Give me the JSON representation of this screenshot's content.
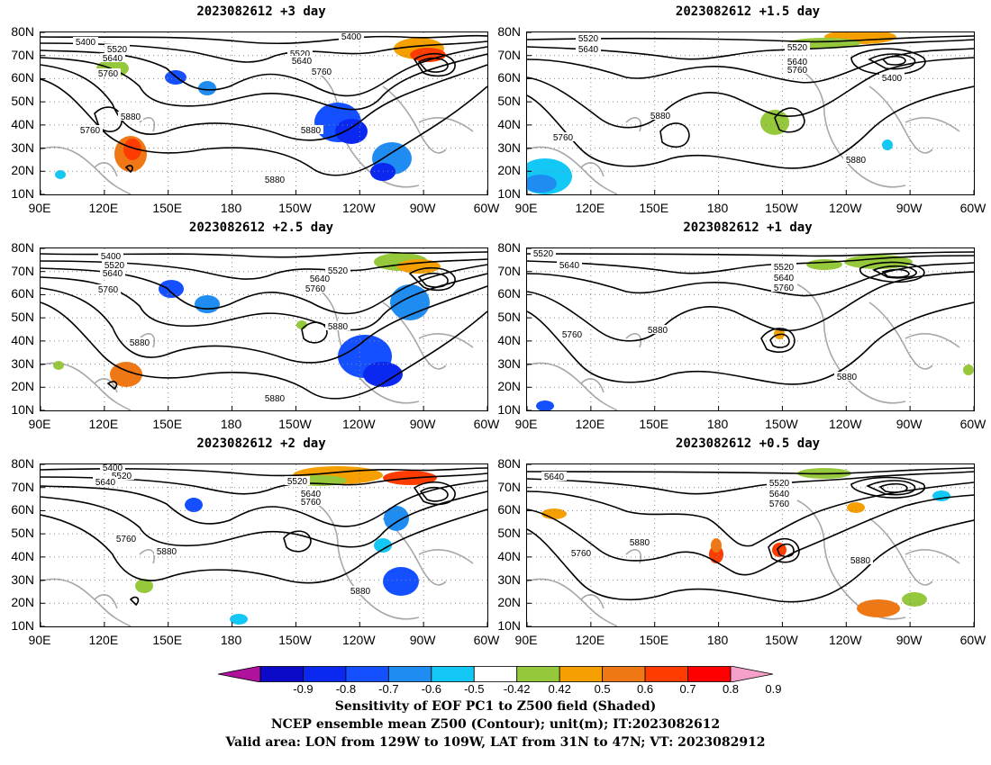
{
  "panels": [
    {
      "title": "2023082612 +3 day"
    },
    {
      "title": "2023082612 +1.5 day"
    },
    {
      "title": "2023082612 +2.5 day"
    },
    {
      "title": "2023082612 +1 day"
    },
    {
      "title": "2023082612 +2 day"
    },
    {
      "title": "2023082612 +0.5 day"
    }
  ],
  "axes": {
    "lat_labels": [
      "80N",
      "70N",
      "60N",
      "50N",
      "40N",
      "30N",
      "20N",
      "10N"
    ],
    "lon_labels": [
      "90E",
      "120E",
      "150E",
      "180",
      "150W",
      "120W",
      "90W",
      "60W"
    ]
  },
  "contour_labels": {
    "panel_0": [
      "5400",
      "5520",
      "5640",
      "5760",
      "5880",
      "5400",
      "5520",
      "5640",
      "5760",
      "5880",
      "5760",
      "5880"
    ],
    "panel_1": [
      "5520",
      "5640",
      "5520",
      "5640",
      "5760",
      "5400",
      "5880",
      "5760",
      "5880"
    ],
    "panel_2": [
      "5400",
      "5520",
      "5640",
      "5760",
      "5520",
      "5640",
      "5760",
      "5880",
      "5880",
      "5880"
    ],
    "panel_3": [
      "5520",
      "5640",
      "5520",
      "5640",
      "5760",
      "5760",
      "5880",
      "5880"
    ],
    "panel_4": [
      "5400",
      "5520",
      "5640",
      "5520",
      "5640",
      "5760",
      "5760",
      "5880",
      "5880"
    ],
    "panel_5": [
      "5640",
      "5520",
      "5640",
      "5760",
      "5760",
      "5880",
      "5880"
    ]
  },
  "colorbar": {
    "ticks": [
      "-0.9",
      "-0.8",
      "-0.7",
      "-0.6",
      "-0.5",
      "-0.42",
      "0.42",
      "0.5",
      "0.6",
      "0.7",
      "0.8",
      "0.9"
    ],
    "colors": [
      "#b0129c",
      "#0a0ac8",
      "#0a28f0",
      "#1450ff",
      "#1e8cf0",
      "#14c8f5",
      "#ffffff",
      "#96c83c",
      "#f5a000",
      "#f07814",
      "#ff3c00",
      "#ff0000",
      "#f5a0c8"
    ]
  },
  "caption": {
    "line1": "Sensitivity of EOF PC1 to Z500 field (Shaded)",
    "line2": "NCEP ensemble mean Z500 (Contour); unit(m); IT:2023082612",
    "line3": "Valid area: LON from 129W to 109W, LAT from 31N to 47N; VT: 2023082912"
  }
}
